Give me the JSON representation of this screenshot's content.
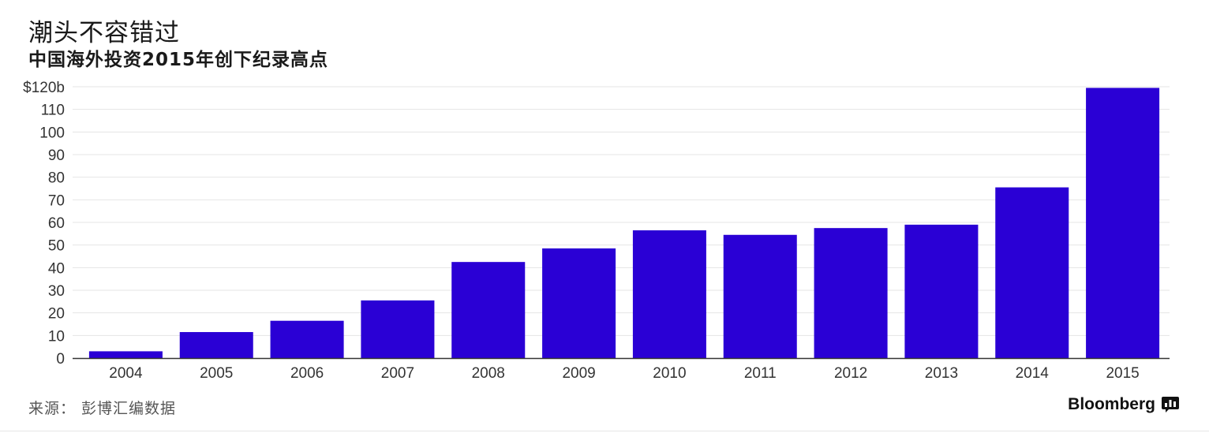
{
  "title": "潮头不容错过",
  "subtitle": "中国海外投资2015年创下纪录高点",
  "source": "来源： 彭博汇编数据",
  "brand": "Bloomberg",
  "chart_data": {
    "type": "bar",
    "title": "潮头不容错过",
    "subtitle": "中国海外投资2015年创下纪录高点",
    "xlabel": "",
    "ylabel": "",
    "categories": [
      "2004",
      "2005",
      "2006",
      "2007",
      "2008",
      "2009",
      "2010",
      "2011",
      "2012",
      "2013",
      "2014",
      "2015"
    ],
    "values": [
      3,
      11.5,
      16.5,
      25.5,
      42.5,
      48.5,
      56.5,
      54.5,
      57.5,
      59,
      75.5,
      119.5
    ],
    "ylim": [
      0,
      120
    ],
    "yticks": [
      0,
      10,
      20,
      30,
      40,
      50,
      60,
      70,
      80,
      90,
      100,
      110,
      120
    ],
    "ytick_labels": [
      "0",
      "10",
      "20",
      "30",
      "40",
      "50",
      "60",
      "70",
      "80",
      "90",
      "100",
      "110",
      "$120b"
    ],
    "bar_color": "#2a00d5",
    "grid": true,
    "legend": "none"
  }
}
